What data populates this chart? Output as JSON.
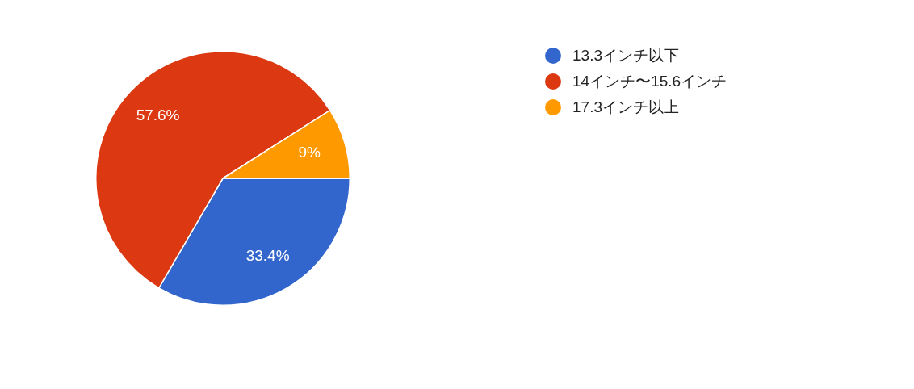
{
  "chart_data": {
    "type": "pie",
    "categories": [
      "13.3インチ以下",
      "14インチ〜15.6インチ",
      "17.3インチ以上"
    ],
    "values": [
      33.4,
      57.6,
      9
    ],
    "colors": [
      "#3366cc",
      "#dc3912",
      "#ff9900"
    ],
    "value_labels": [
      "33.4%",
      "57.6%",
      "9%"
    ],
    "legend": "right"
  }
}
